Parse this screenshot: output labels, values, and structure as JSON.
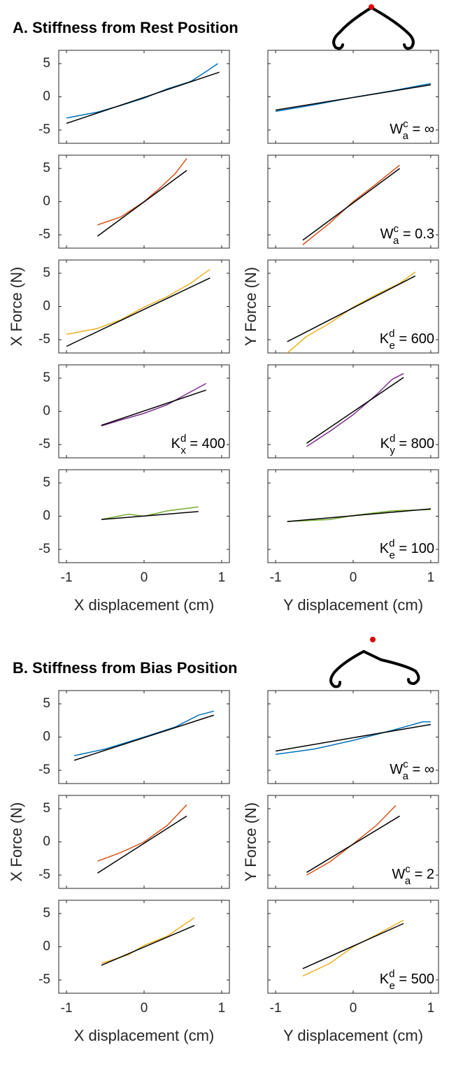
{
  "chart_data": [
    {
      "type": "line",
      "title": "A. Stiffness from Rest Position",
      "xlabels": [
        "X displacement (cm)",
        "Y displacement (cm)"
      ],
      "ylabels": [
        "X Force (N)",
        "Y Force (N)"
      ],
      "xlim": [
        -1.1,
        1.1
      ],
      "ylim": [
        -7,
        7
      ],
      "xticks": [
        -1,
        0,
        1
      ],
      "yticks": [
        -5,
        0,
        5
      ],
      "rows": [
        [
          {
            "series": [
              {
                "color": "#0072bd",
                "x": [
                  -1,
                  -0.6,
                  -0.3,
                  0,
                  0.3,
                  0.6,
                  0.8,
                  0.95
                ],
                "values": [
                  -3.2,
                  -2.3,
                  -1.3,
                  -0.2,
                  1.2,
                  2.3,
                  3.8,
                  5
                ]
              },
              {
                "color": "#000000",
                "x": [
                  -1,
                  0.97
                ],
                "values": [
                  -4,
                  3.7
                ]
              }
            ]
          },
          {
            "series": [
              {
                "color": "#0072bd",
                "x": [
                  -1,
                  -0.5,
                  0,
                  0.5,
                  1
                ],
                "values": [
                  -2.2,
                  -1.2,
                  -0.1,
                  0.9,
                  2
                ]
              },
              {
                "color": "#000000",
                "x": [
                  -1,
                  1
                ],
                "values": [
                  -2,
                  1.8
                ]
              }
            ],
            "annotation": {
              "symbol": "W",
              "sup": "c",
              "sub": "a",
              "text": " = ∞"
            }
          }
        ],
        [
          {
            "series": [
              {
                "color": "#d95319",
                "x": [
                  -0.6,
                  -0.3,
                  0,
                  0.2,
                  0.4,
                  0.55
                ],
                "values": [
                  -3.5,
                  -2.3,
                  0,
                  2,
                  4.2,
                  6.5
                ]
              },
              {
                "color": "#000000",
                "x": [
                  -0.6,
                  0.55
                ],
                "values": [
                  -5.2,
                  4.7
                ]
              }
            ]
          },
          {
            "series": [
              {
                "color": "#d95319",
                "x": [
                  -0.65,
                  -0.3,
                  0,
                  0.3,
                  0.6
                ],
                "values": [
                  -6.5,
                  -3.2,
                  0,
                  2.7,
                  5.5
                ]
              },
              {
                "color": "#000000",
                "x": [
                  -0.65,
                  0.6
                ],
                "values": [
                  -5.8,
                  5
                ]
              }
            ],
            "annotation": {
              "symbol": "W",
              "sup": "c",
              "sub": "a",
              "text": " = 0.3"
            }
          }
        ],
        [
          {
            "series": [
              {
                "color": "#edb120",
                "x": [
                  -1,
                  -0.6,
                  -0.3,
                  0,
                  0.3,
                  0.6,
                  0.85
                ],
                "values": [
                  -4.2,
                  -3.3,
                  -2,
                  -0.1,
                  1.5,
                  3.5,
                  5.6
                ]
              },
              {
                "color": "#000000",
                "x": [
                  -1,
                  0.85
                ],
                "values": [
                  -6,
                  4.3
                ]
              }
            ]
          },
          {
            "series": [
              {
                "color": "#edb120",
                "x": [
                  -0.85,
                  -0.6,
                  -0.3,
                  0,
                  0.3,
                  0.6,
                  0.8
                ],
                "values": [
                  -7,
                  -4.5,
                  -2.5,
                  -0.1,
                  1.8,
                  3.5,
                  5.2
                ]
              },
              {
                "color": "#000000",
                "x": [
                  -0.85,
                  0.8
                ],
                "values": [
                  -5.3,
                  4.6
                ]
              }
            ],
            "annotation": {
              "symbol": "K",
              "sup": "d",
              "sub": "e",
              "text": " = 600"
            }
          }
        ],
        [
          {
            "series": [
              {
                "color": "#7e2f8e",
                "x": [
                  -0.55,
                  -0.3,
                  0,
                  0.3,
                  0.5,
                  0.8
                ],
                "values": [
                  -2.2,
                  -1.3,
                  -0.3,
                  1,
                  2.3,
                  4.2
                ]
              },
              {
                "color": "#000000",
                "x": [
                  -0.55,
                  0.8
                ],
                "values": [
                  -2.1,
                  3.2
                ]
              }
            ],
            "annotation": {
              "symbol": "K",
              "sup": "d",
              "sub": "x",
              "text": " = 400"
            }
          },
          {
            "series": [
              {
                "color": "#7e2f8e",
                "x": [
                  -0.6,
                  -0.3,
                  0,
                  0.3,
                  0.5,
                  0.65
                ],
                "values": [
                  -5.3,
                  -3,
                  -0.5,
                  2.5,
                  4.8,
                  5.7
                ]
              },
              {
                "color": "#000000",
                "x": [
                  -0.6,
                  0.65
                ],
                "values": [
                  -4.8,
                  5.1
                ]
              }
            ],
            "annotation": {
              "symbol": "K",
              "sup": "d",
              "sub": "y",
              "text": " = 800"
            }
          }
        ],
        [
          {
            "series": [
              {
                "color": "#77ac30",
                "x": [
                  -0.55,
                  -0.2,
                  0,
                  0.3,
                  0.7
                ],
                "values": [
                  -0.5,
                  0.3,
                  0,
                  0.8,
                  1.4
                ]
              },
              {
                "color": "#000000",
                "x": [
                  -0.55,
                  0.7
                ],
                "values": [
                  -0.5,
                  0.7
                ]
              }
            ]
          },
          {
            "series": [
              {
                "color": "#77ac30",
                "x": [
                  -0.85,
                  -0.3,
                  0,
                  0.5,
                  1
                ],
                "values": [
                  -0.8,
                  -0.5,
                  0.1,
                  0.8,
                  1
                ]
              },
              {
                "color": "#000000",
                "x": [
                  -0.85,
                  1
                ],
                "values": [
                  -0.8,
                  1.1
                ]
              }
            ],
            "annotation": {
              "symbol": "K",
              "sup": "d",
              "sub": "e",
              "text": " = 100"
            }
          }
        ]
      ]
    },
    {
      "type": "line",
      "title": "B. Stiffness from Bias Position",
      "xlabels": [
        "X displacement (cm)",
        "Y displacement (cm)"
      ],
      "ylabels": [
        "X Force (N)",
        "Y Force (N)"
      ],
      "xlim": [
        -1.1,
        1.1
      ],
      "ylim": [
        -7,
        7
      ],
      "xticks": [
        -1,
        0,
        1
      ],
      "yticks": [
        -5,
        0,
        5
      ],
      "rows": [
        [
          {
            "series": [
              {
                "color": "#0072bd",
                "x": [
                  -0.9,
                  -0.5,
                  0,
                  0.4,
                  0.7,
                  0.9
                ],
                "values": [
                  -2.8,
                  -1.8,
                  0,
                  1.5,
                  3.3,
                  3.9
                ]
              },
              {
                "color": "#000000",
                "x": [
                  -0.9,
                  0.9
                ],
                "values": [
                  -3.5,
                  3.3
                ]
              }
            ]
          },
          {
            "series": [
              {
                "color": "#0072bd",
                "x": [
                  -1,
                  -0.5,
                  0,
                  0.5,
                  0.9,
                  1
                ],
                "values": [
                  -2.6,
                  -1.8,
                  -0.5,
                  1,
                  2.3,
                  2.3
                ]
              },
              {
                "color": "#000000",
                "x": [
                  -1,
                  1
                ],
                "values": [
                  -2.1,
                  1.9
                ]
              }
            ],
            "annotation": {
              "symbol": "W",
              "sup": "c",
              "sub": "a",
              "text": " = ∞"
            }
          }
        ],
        [
          {
            "series": [
              {
                "color": "#d95319",
                "x": [
                  -0.6,
                  -0.3,
                  0,
                  0.3,
                  0.55
                ],
                "values": [
                  -2.9,
                  -1.6,
                  0,
                  2.5,
                  5.6
                ]
              },
              {
                "color": "#000000",
                "x": [
                  -0.6,
                  0.55
                ],
                "values": [
                  -4.7,
                  3.9
                ]
              }
            ]
          },
          {
            "series": [
              {
                "color": "#d95319",
                "x": [
                  -0.6,
                  -0.3,
                  0,
                  0.3,
                  0.55
                ],
                "values": [
                  -5,
                  -3,
                  -0.3,
                  2.5,
                  5.5
                ]
              },
              {
                "color": "#000000",
                "x": [
                  -0.6,
                  0.6
                ],
                "values": [
                  -4.6,
                  3.9
                ]
              }
            ],
            "annotation": {
              "symbol": "W",
              "sup": "c",
              "sub": "a",
              "text": " = 2"
            }
          }
        ],
        [
          {
            "series": [
              {
                "color": "#edb120",
                "x": [
                  -0.55,
                  -0.2,
                  0,
                  0.3,
                  0.65
                ],
                "values": [
                  -2.5,
                  -1.2,
                  0.2,
                  1.6,
                  4.4
                ]
              },
              {
                "color": "#000000",
                "x": [
                  -0.55,
                  0.65
                ],
                "values": [
                  -2.8,
                  3.2
                ]
              }
            ]
          },
          {
            "series": [
              {
                "color": "#edb120",
                "x": [
                  -0.65,
                  -0.3,
                  0,
                  0.3,
                  0.65
                ],
                "values": [
                  -4.4,
                  -2.5,
                  0,
                  1.8,
                  4
                ]
              },
              {
                "color": "#000000",
                "x": [
                  -0.65,
                  0.65
                ],
                "values": [
                  -3.3,
                  3.5
                ]
              }
            ],
            "annotation": {
              "symbol": "K",
              "sup": "d",
              "sub": "e",
              "text": " = 500"
            }
          }
        ]
      ]
    }
  ]
}
